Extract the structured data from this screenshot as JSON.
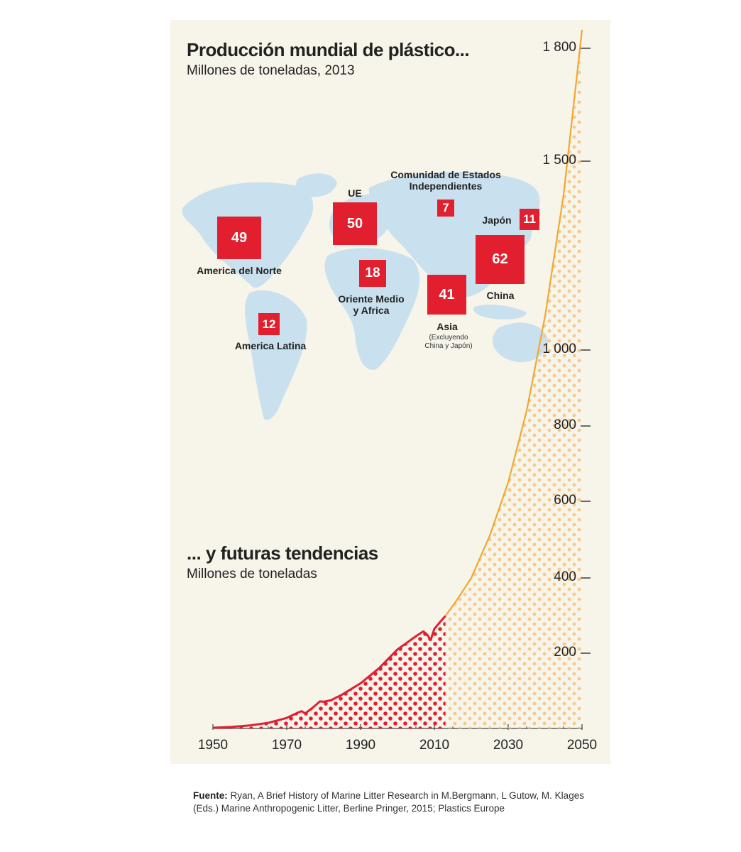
{
  "map": {
    "title": "Producción mundial de plástico...",
    "subtitle": "Millones de toneladas, 2013",
    "regions": [
      {
        "name": "America del Norte",
        "value": 49
      },
      {
        "name": "UE",
        "value": 50
      },
      {
        "name": "Comunidad de Estados Independientes",
        "value": 7
      },
      {
        "name": "Japón",
        "value": 11
      },
      {
        "name": "Oriente Medio y Africa",
        "value": 18
      },
      {
        "name": "Asia",
        "note": "(Excluyendo China y Japón)",
        "value": 41
      },
      {
        "name": "China",
        "value": 62
      },
      {
        "name": "America Latina",
        "value": 12
      }
    ]
  },
  "chart_data": {
    "type": "area",
    "title": "... y futuras tendencias",
    "subtitle": "Millones de toneladas",
    "xlim": [
      1950,
      2050
    ],
    "ylim": [
      0,
      1850
    ],
    "x_ticks": [
      1950,
      1970,
      1990,
      2010,
      2030,
      2050
    ],
    "y_ticks": [
      {
        "value": 200,
        "label": "200"
      },
      {
        "value": 400,
        "label": "400"
      },
      {
        "value": 600,
        "label": "600"
      },
      {
        "value": 800,
        "label": "800"
      },
      {
        "value": 1000,
        "label": "1 000"
      },
      {
        "value": 1500,
        "label": "1 500"
      },
      {
        "value": 1800,
        "label": "1 800"
      }
    ],
    "series": [
      {
        "role": "historical",
        "color": "#e11f2e",
        "x": [
          1950,
          1955,
          1960,
          1965,
          1970,
          1973,
          1974,
          1975,
          1977,
          1979,
          1980,
          1982,
          1985,
          1990,
          1995,
          2000,
          2005,
          2007,
          2008,
          2009,
          2010,
          2012,
          2013
        ],
        "y": [
          2,
          4,
          8,
          15,
          28,
          42,
          46,
          40,
          55,
          72,
          71,
          75,
          90,
          120,
          160,
          210,
          245,
          258,
          250,
          235,
          265,
          288,
          299
        ]
      },
      {
        "role": "projection",
        "color": "#f0a830",
        "x": [
          2013,
          2016,
          2020,
          2025,
          2030,
          2035,
          2040,
          2045,
          2050
        ],
        "y": [
          299,
          340,
          400,
          510,
          650,
          840,
          1090,
          1410,
          1850
        ]
      }
    ]
  },
  "source": {
    "label": "Fuente:",
    "text": " Ryan, A Brief History of Marine Litter Research in M.Bergmann, L Gutow, M. Klages (Eds.) Marine Anthropogenic Litter, Berline Pringer, 2015; Plastics Europe"
  },
  "colors": {
    "panel": "#f7f4ea",
    "map": "#c9e0ee",
    "red": "#e11f2e",
    "orange": "#f0a830"
  }
}
